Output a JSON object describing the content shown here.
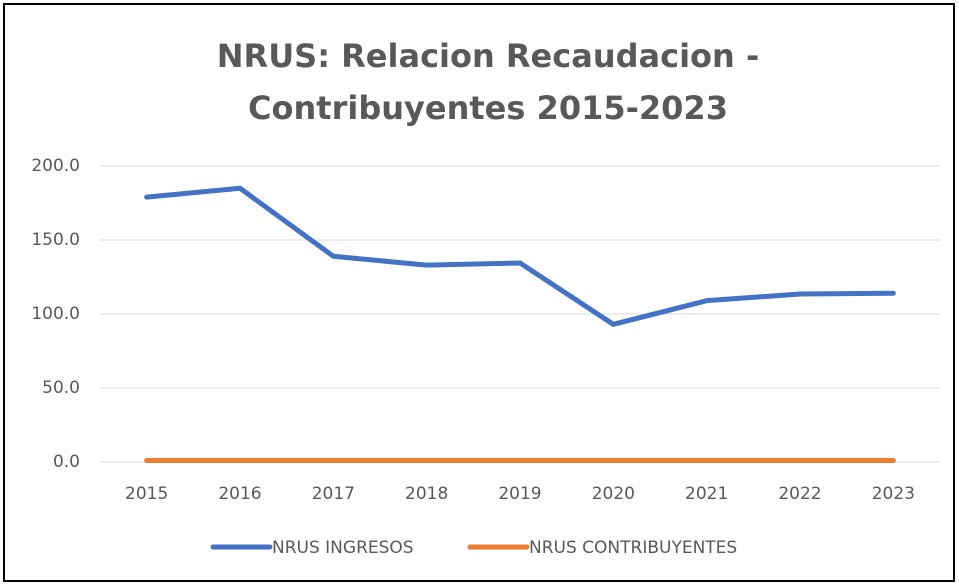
{
  "chart_data": {
    "type": "line",
    "title": [
      "NRUS: Relacion Recaudacion -",
      "Contribuyentes 2015-2023"
    ],
    "categories": [
      "2015",
      "2016",
      "2017",
      "2018",
      "2019",
      "2020",
      "2021",
      "2022",
      "2023"
    ],
    "series": [
      {
        "name": "NRUS INGRESOS",
        "color": "#4472c4",
        "values": [
          179,
          185,
          139,
          133,
          134.5,
          93,
          109,
          113.5,
          114
        ]
      },
      {
        "name": "NRUS CONTRIBUYENTES",
        "color": "#ed7d31",
        "values": [
          1,
          1,
          1,
          1,
          1,
          1,
          1,
          1,
          1
        ]
      }
    ],
    "ylim": [
      0,
      200
    ],
    "yticks": [
      {
        "value": 0,
        "label": "0.0"
      },
      {
        "value": 50,
        "label": "50.0"
      },
      {
        "value": 100,
        "label": "100.0"
      },
      {
        "value": 150,
        "label": "150.0"
      },
      {
        "value": 200,
        "label": "200.0"
      }
    ],
    "grid": true,
    "legend": "bottom"
  }
}
